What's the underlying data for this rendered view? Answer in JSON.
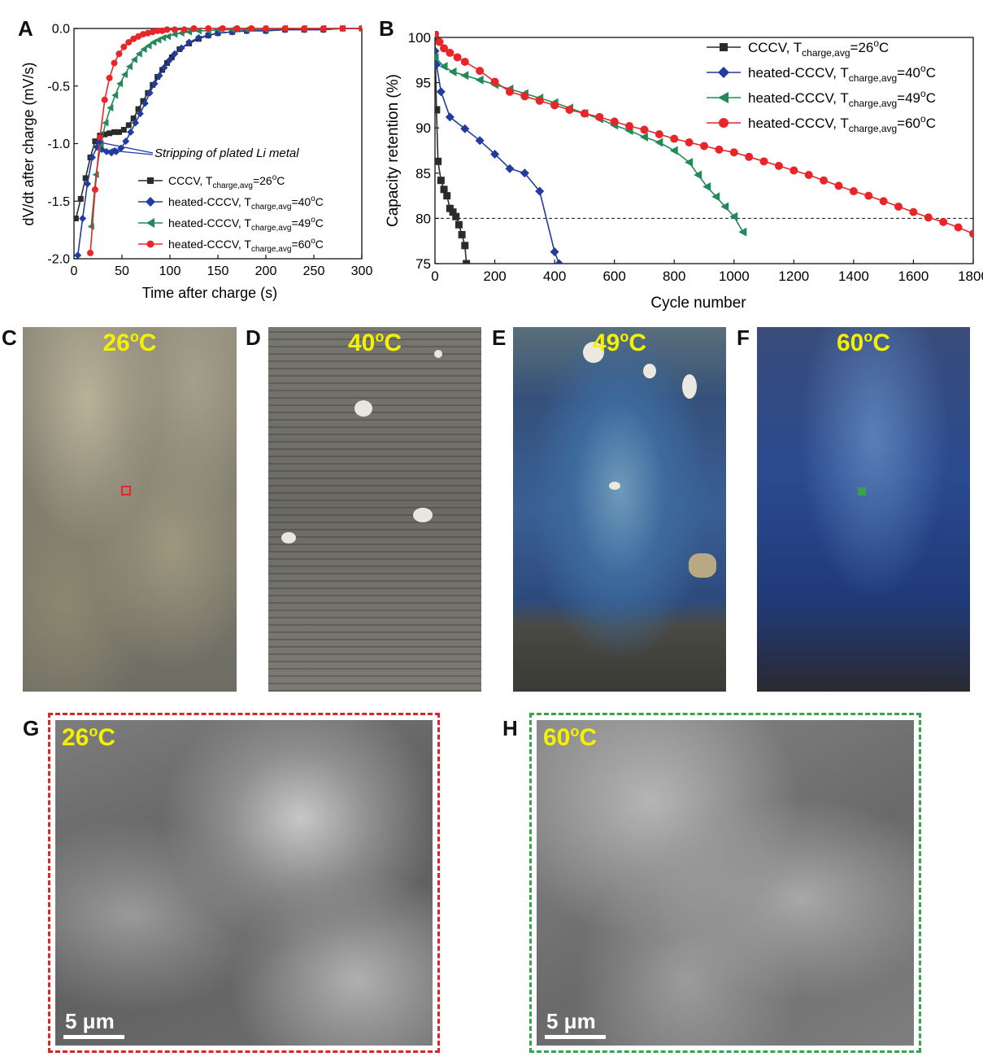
{
  "panels": {
    "A": "A",
    "B": "B",
    "C": "C",
    "D": "D",
    "E": "E",
    "F": "F",
    "G": "G",
    "H": "H"
  },
  "legend": {
    "cccv": {
      "prefix": "CCCV, T",
      "sub": "charge,avg",
      "suffix": "=26",
      "sup": "o",
      "unit": "C"
    },
    "h40": {
      "prefix": "heated-CCCV, T",
      "sub": "charge,avg",
      "suffix": "=40",
      "sup": "o",
      "unit": "C"
    },
    "h49": {
      "prefix": "heated-CCCV, T",
      "sub": "charge,avg",
      "suffix": "=49",
      "sup": "o",
      "unit": "C"
    },
    "h60": {
      "prefix": "heated-CCCV, T",
      "sub": "charge,avg",
      "suffix": "=60",
      "sup": "o",
      "unit": "C"
    }
  },
  "colors": {
    "cccv": "#2b2b2b",
    "h40": "#1f3c9e",
    "h49": "#24895a",
    "h60": "#e8262a",
    "frame_red": "#d9262a",
    "frame_green": "#33a64a"
  },
  "chart_data": [
    {
      "type": "line",
      "xlabel": "Time after charge (s)",
      "ylabel": "dV/dt after charge (mV/s)",
      "xlim": [
        0,
        300
      ],
      "ylim": [
        -2.0,
        0.0
      ],
      "xticks": [
        "0",
        "50",
        "100",
        "150",
        "200",
        "250",
        "300"
      ],
      "yticks": [
        "0.0",
        "-0.5",
        "-1.0",
        "-1.5",
        "-2.0"
      ],
      "annotation": "Stripping of plated Li metal",
      "legend_position": "lower-right",
      "series": [
        {
          "key": "cccv",
          "marker": "square",
          "x": [
            2,
            7,
            12,
            17,
            22,
            27,
            32,
            37,
            42,
            47,
            52,
            57,
            62,
            67,
            72,
            77,
            82,
            87,
            92,
            97,
            102,
            110,
            120,
            130,
            140,
            150,
            165,
            180,
            200,
            220,
            240,
            260,
            280,
            300
          ],
          "y": [
            -1.65,
            -1.48,
            -1.3,
            -1.12,
            -0.98,
            -0.93,
            -0.92,
            -0.91,
            -0.9,
            -0.9,
            -0.88,
            -0.84,
            -0.78,
            -0.7,
            -0.63,
            -0.56,
            -0.49,
            -0.42,
            -0.36,
            -0.3,
            -0.25,
            -0.18,
            -0.13,
            -0.09,
            -0.06,
            -0.04,
            -0.03,
            -0.02,
            -0.02,
            -0.01,
            -0.01,
            -0.01,
            -0.0,
            0.0
          ]
        },
        {
          "key": "h40",
          "marker": "diamond",
          "x": [
            4,
            9,
            14,
            19,
            24,
            29,
            34,
            39,
            44,
            49,
            54,
            59,
            64,
            69,
            74,
            79,
            84,
            89,
            94,
            99,
            105,
            112,
            120,
            130,
            140,
            150,
            165,
            180,
            200,
            220,
            240,
            260,
            280,
            300
          ],
          "y": [
            -1.97,
            -1.65,
            -1.35,
            -1.12,
            -1.03,
            -1.05,
            -1.07,
            -1.08,
            -1.07,
            -1.04,
            -0.98,
            -0.9,
            -0.82,
            -0.74,
            -0.65,
            -0.56,
            -0.48,
            -0.41,
            -0.34,
            -0.28,
            -0.22,
            -0.17,
            -0.12,
            -0.08,
            -0.06,
            -0.04,
            -0.03,
            -0.02,
            -0.02,
            -0.01,
            -0.01,
            -0.01,
            -0.0,
            0.0
          ]
        },
        {
          "key": "h49",
          "marker": "triangle-left",
          "x": [
            18,
            23,
            28,
            33,
            38,
            43,
            48,
            53,
            58,
            63,
            68,
            73,
            78,
            83,
            88,
            93,
            98,
            105,
            112,
            120,
            130,
            140,
            150,
            165,
            180,
            200,
            220,
            240,
            260,
            280,
            300
          ],
          "y": [
            -1.72,
            -1.27,
            -1.0,
            -0.82,
            -0.69,
            -0.58,
            -0.48,
            -0.4,
            -0.33,
            -0.27,
            -0.22,
            -0.18,
            -0.15,
            -0.12,
            -0.1,
            -0.08,
            -0.07,
            -0.05,
            -0.04,
            -0.03,
            -0.02,
            -0.02,
            -0.01,
            -0.01,
            -0.01,
            -0.01,
            -0.0,
            -0.0,
            -0.0,
            -0.0,
            0.0
          ]
        },
        {
          "key": "h60",
          "marker": "circle",
          "x": [
            17,
            22,
            27,
            32,
            37,
            42,
            47,
            52,
            57,
            62,
            67,
            72,
            77,
            82,
            87,
            92,
            97,
            105,
            115,
            125,
            140,
            155,
            170,
            185,
            200,
            220,
            240,
            260,
            280,
            300
          ],
          "y": [
            -1.95,
            -1.4,
            -0.95,
            -0.62,
            -0.43,
            -0.3,
            -0.22,
            -0.16,
            -0.12,
            -0.09,
            -0.07,
            -0.05,
            -0.04,
            -0.03,
            -0.02,
            -0.02,
            -0.01,
            -0.01,
            -0.01,
            -0.0,
            -0.0,
            -0.0,
            -0.0,
            -0.0,
            -0.0,
            -0.0,
            -0.0,
            -0.0,
            -0.0,
            0.0
          ]
        }
      ]
    },
    {
      "type": "line",
      "xlabel": "Cycle number",
      "ylabel": "Capacity retention (%)",
      "xlim": [
        0,
        1800
      ],
      "ylim": [
        75,
        100
      ],
      "xticks": [
        "0",
        "200",
        "400",
        "600",
        "800",
        "1000",
        "1200",
        "1400",
        "1600",
        "1800"
      ],
      "yticks": [
        "75",
        "80",
        "85",
        "90",
        "95",
        "100"
      ],
      "reference_line": 80,
      "legend_position": "top-right",
      "series": [
        {
          "key": "cccv",
          "marker": "square",
          "x": [
            0,
            5,
            10,
            20,
            30,
            40,
            50,
            60,
            70,
            80,
            90,
            100,
            105
          ],
          "y": [
            100,
            92,
            86.3,
            84.2,
            83.2,
            82.5,
            81.1,
            80.7,
            80.2,
            79.3,
            78.2,
            77,
            75
          ]
        },
        {
          "key": "h40",
          "marker": "diamond",
          "x": [
            0,
            5,
            20,
            50,
            100,
            150,
            200,
            250,
            300,
            350,
            400,
            415
          ],
          "y": [
            98.5,
            97,
            94,
            91.2,
            89.9,
            88.6,
            87.1,
            85.5,
            85.0,
            83.0,
            76.3,
            75
          ]
        },
        {
          "key": "h49",
          "marker": "triangle-left",
          "x": [
            0,
            30,
            60,
            100,
            150,
            200,
            250,
            300,
            350,
            400,
            450,
            500,
            550,
            600,
            650,
            700,
            750,
            800,
            850,
            880,
            910,
            940,
            970,
            1000,
            1030
          ],
          "y": [
            97.8,
            96.8,
            96.2,
            95.8,
            95.3,
            94.8,
            94.3,
            93.8,
            93.3,
            92.8,
            92.2,
            91.6,
            91.0,
            90.3,
            89.7,
            89.0,
            88.4,
            87.5,
            86.2,
            84.8,
            83.5,
            82.4,
            81.3,
            80.2,
            78.5
          ]
        },
        {
          "key": "h60",
          "marker": "circle",
          "x": [
            0,
            15,
            30,
            50,
            75,
            100,
            150,
            200,
            250,
            300,
            350,
            400,
            450,
            500,
            550,
            600,
            650,
            700,
            750,
            800,
            850,
            900,
            950,
            1000,
            1050,
            1100,
            1150,
            1200,
            1250,
            1300,
            1350,
            1400,
            1450,
            1500,
            1550,
            1600,
            1650,
            1700,
            1750,
            1800
          ],
          "y": [
            100.4,
            99.5,
            98.8,
            98.3,
            97.8,
            97.3,
            96.3,
            95.1,
            94.0,
            93.5,
            93.0,
            92.5,
            92.0,
            91.6,
            91.2,
            90.7,
            90.2,
            89.8,
            89.3,
            88.8,
            88.4,
            88.0,
            87.6,
            87.3,
            86.8,
            86.3,
            85.8,
            85.3,
            84.8,
            84.2,
            83.6,
            83.0,
            82.5,
            81.9,
            81.3,
            80.7,
            80.1,
            79.6,
            79.0,
            78.3
          ]
        }
      ]
    }
  ],
  "photos": [
    {
      "label": "26",
      "sup": "o",
      "unit": "C"
    },
    {
      "label": "40",
      "sup": "o",
      "unit": "C"
    },
    {
      "label": "49",
      "sup": "o",
      "unit": "C"
    },
    {
      "label": "60",
      "sup": "o",
      "unit": "C"
    }
  ],
  "sem": [
    {
      "label": "26",
      "sup": "o",
      "unit": "C",
      "scale": "5 μm"
    },
    {
      "label": "60",
      "sup": "o",
      "unit": "C",
      "scale": "5 μm"
    }
  ]
}
